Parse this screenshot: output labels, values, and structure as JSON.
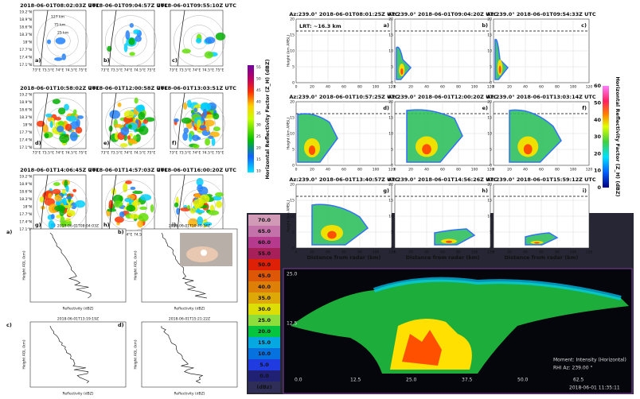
{
  "ppi": {
    "panels": [
      {
        "title": "2018-06-01T08:02:03Z UTC",
        "letter": "a)"
      },
      {
        "title": "2018-06-01T09:04:57Z UTC",
        "letter": "b)"
      },
      {
        "title": "2018-06-01T09:55:10Z UTC",
        "letter": "c)"
      },
      {
        "title": "2018-06-01T10:58:02Z UTC",
        "letter": "d)"
      },
      {
        "title": "2018-06-01T12:00:58Z UTC",
        "letter": "e)"
      },
      {
        "title": "2018-06-01T13:03:51Z UTC",
        "letter": "f)"
      },
      {
        "title": "2018-06-01T14:06:45Z UTC",
        "letter": "g)"
      },
      {
        "title": "2018-06-01T14:57:03Z UTC",
        "letter": "h)"
      },
      {
        "title": "2018-06-01T16:00:20Z UTC",
        "letter": "i)"
      }
    ],
    "ranges": [
      "127 km",
      "75 km",
      "25 km"
    ],
    "yticks": [
      "19.2°N",
      "18.9°N",
      "18.6°N",
      "18.3°N",
      "18°N",
      "17.7°N",
      "17.4°N",
      "17.1°N"
    ],
    "xticks": [
      "73°E",
      "73.5°E",
      "74°E",
      "74.5°E",
      "75°E"
    ],
    "colorbar_label": "Horizontal Reflectivity Factor (Z_H) (dBZ)",
    "colorbar_ticks": [
      "10",
      "15",
      "20",
      "25",
      "30",
      "35",
      "40",
      "45",
      "50",
      "55"
    ]
  },
  "rhi": {
    "panels": [
      {
        "title": "Az:239.0°   2018-06-01T08:01:25Z UTC",
        "letter": "a)"
      },
      {
        "title": "Az:239.0°   2018-06-01T09:04:20Z UTC",
        "letter": "b)"
      },
      {
        "title": "Az:239.0°   2018-06-01T09:54:33Z UTC",
        "letter": "c)"
      },
      {
        "title": "Az:239.0°   2018-06-01T10:57:25Z UTC",
        "letter": "d)"
      },
      {
        "title": "Az:239.0°   2018-06-01T12:00:20Z UTC",
        "letter": "e)"
      },
      {
        "title": "Az:239.0°   2018-06-01T13:03:14Z UTC",
        "letter": "f)"
      },
      {
        "title": "Az:239.0°   2018-06-01T13:40:57Z UTC",
        "letter": "g)"
      },
      {
        "title": "Az:239.0°   2018-06-01T14:56:26Z UTC",
        "letter": "h)"
      },
      {
        "title": "Az:239.0°   2018-06-01T15:59:12Z UTC",
        "letter": "i)"
      }
    ],
    "lrt": "LRT: ~16.3 km",
    "ylabel": "Height (km AMSL)",
    "xlabel": "Distance from radar (km)",
    "xticks": [
      "0",
      "20",
      "40",
      "60",
      "80",
      "100",
      "120"
    ],
    "yticks": [
      "0",
      "5",
      "10",
      "15",
      "20"
    ],
    "colorbar_label": "Horizontal Reflectivity Factor (Z_H) (dBZ)",
    "colorbar_ticks": [
      "0",
      "10",
      "20",
      "30",
      "40",
      "50",
      "60"
    ]
  },
  "profiles": {
    "panels": [
      {
        "title": "2018-06-01T08:04:03Z",
        "letter": "a)"
      },
      {
        "title": "2018-06-01T10:49:34Z",
        "letter": "b)"
      },
      {
        "title": "2018-06-01T13:19:19Z",
        "letter": "c)"
      },
      {
        "title": "2018-06-01T15:21:22Z",
        "letter": "d)"
      }
    ],
    "xlabel": "Reflectivity (dBZ)",
    "ylabel": "Height AGL (km)"
  },
  "screen": {
    "scale": [
      "70.0",
      "65.0",
      "60.0",
      "55.0",
      "50.0",
      "45.0",
      "40.0",
      "35.0",
      "30.0",
      "25.0",
      "20.0",
      "15.0",
      "10.0",
      "5.0",
      "0.0",
      "(dBz)"
    ],
    "xticks": [
      "0.0",
      "12.5",
      "25.0",
      "37.5",
      "50.0",
      "62.5"
    ],
    "yticks": [
      "25.0",
      "12.5"
    ],
    "moment": "Moment: Intensity (Horizontal)",
    "az": "RHI Az: 239.00 °",
    "time": "2018-06-01 11:35:11"
  }
}
